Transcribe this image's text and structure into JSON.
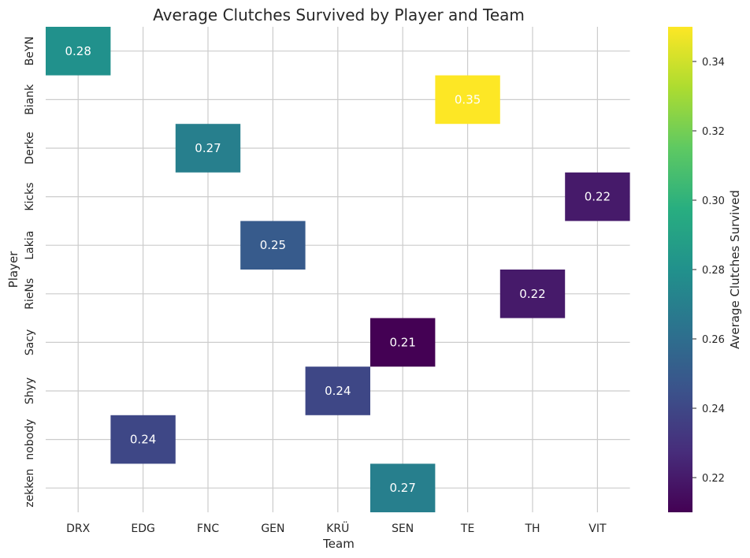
{
  "chart_data": {
    "type": "heatmap",
    "title": "Average Clutches Survived by Player and Team",
    "xlabel": "Team",
    "ylabel": "Player",
    "x_categories": [
      "DRX",
      "EDG",
      "FNC",
      "GEN",
      "KRÜ",
      "SEN",
      "TE",
      "TH",
      "VIT"
    ],
    "y_categories": [
      "BeYN",
      "Biank",
      "Derke",
      "Kicks",
      "Lakia",
      "RieNs",
      "Sacy",
      "Shyy",
      "nobody",
      "zekken"
    ],
    "cells": [
      {
        "player": "BeYN",
        "team": "DRX",
        "value": 0.28,
        "label": "0.28"
      },
      {
        "player": "Biank",
        "team": "TE",
        "value": 0.35,
        "label": "0.35"
      },
      {
        "player": "Derke",
        "team": "FNC",
        "value": 0.27,
        "label": "0.27"
      },
      {
        "player": "Kicks",
        "team": "VIT",
        "value": 0.22,
        "label": "0.22"
      },
      {
        "player": "Lakia",
        "team": "GEN",
        "value": 0.25,
        "label": "0.25"
      },
      {
        "player": "RieNs",
        "team": "TH",
        "value": 0.22,
        "label": "0.22"
      },
      {
        "player": "Sacy",
        "team": "SEN",
        "value": 0.21,
        "label": "0.21"
      },
      {
        "player": "Shyy",
        "team": "KRÜ",
        "value": 0.24,
        "label": "0.24"
      },
      {
        "player": "nobody",
        "team": "EDG",
        "value": 0.24,
        "label": "0.24"
      },
      {
        "player": "zekken",
        "team": "SEN",
        "value": 0.27,
        "label": "0.27"
      }
    ],
    "colorbar": {
      "label": "Average Clutches Survived",
      "colormap": "viridis",
      "vmin": 0.21,
      "vmax": 0.35,
      "ticks": [
        "0.22",
        "0.24",
        "0.26",
        "0.28",
        "0.30",
        "0.32",
        "0.34"
      ]
    },
    "grid": true
  }
}
